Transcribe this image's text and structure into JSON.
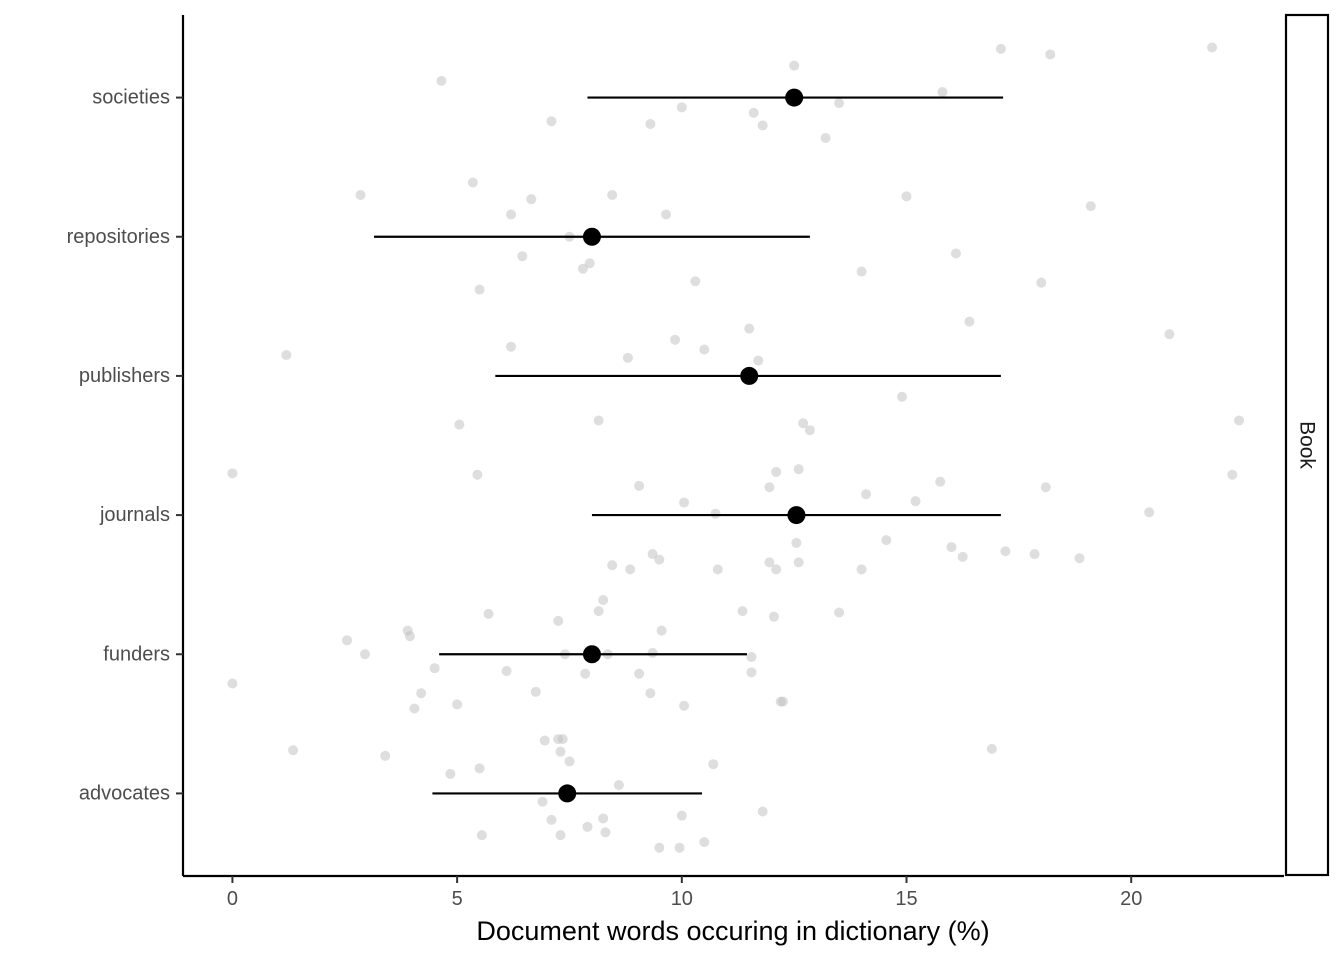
{
  "chart_data": {
    "type": "scatter",
    "facet_label": "Book",
    "xlabel": "Document words occuring in dictionary (%)",
    "ylabel": "",
    "xlim": [
      -1.1,
      23.4
    ],
    "x_ticks": [
      0,
      5,
      10,
      15,
      20
    ],
    "categories": [
      "advocates",
      "funders",
      "journals",
      "publishers",
      "repositories",
      "societies"
    ],
    "grid": false,
    "colors": {
      "points": "#bdbdbd",
      "summary": "#000000",
      "axis": "#000000",
      "tick_label": "#4d4d4d"
    },
    "summary": [
      {
        "category": "advocates",
        "mean": 7.45,
        "low": 4.45,
        "high": 10.45
      },
      {
        "category": "funders",
        "mean": 8.0,
        "low": 4.6,
        "high": 11.45
      },
      {
        "category": "journals",
        "mean": 12.55,
        "low": 8.0,
        "high": 17.1
      },
      {
        "category": "publishers",
        "mean": 11.5,
        "low": 5.85,
        "high": 17.1
      },
      {
        "category": "repositories",
        "mean": 8.0,
        "low": 3.15,
        "high": 12.85
      },
      {
        "category": "societies",
        "mean": 12.5,
        "low": 7.9,
        "high": 17.15
      }
    ],
    "points": [
      {
        "category": "societies",
        "x": 17.1,
        "offset": 0.35
      },
      {
        "category": "societies",
        "x": 18.2,
        "offset": 0.31
      },
      {
        "category": "societies",
        "x": 21.8,
        "offset": 0.36
      },
      {
        "category": "societies",
        "x": 12.5,
        "offset": 0.23
      },
      {
        "category": "societies",
        "x": 4.65,
        "offset": 0.12
      },
      {
        "category": "societies",
        "x": 15.8,
        "offset": 0.04
      },
      {
        "category": "societies",
        "x": 13.5,
        "offset": -0.04
      },
      {
        "category": "societies",
        "x": 10.0,
        "offset": -0.07
      },
      {
        "category": "societies",
        "x": 11.6,
        "offset": -0.11
      },
      {
        "category": "societies",
        "x": 7.1,
        "offset": -0.17
      },
      {
        "category": "societies",
        "x": 9.3,
        "offset": -0.19
      },
      {
        "category": "societies",
        "x": 11.8,
        "offset": -0.2
      },
      {
        "category": "societies",
        "x": 13.2,
        "offset": -0.29
      },
      {
        "category": "repositories",
        "x": 2.85,
        "offset": 0.3
      },
      {
        "category": "repositories",
        "x": 5.35,
        "offset": 0.39
      },
      {
        "category": "repositories",
        "x": 8.45,
        "offset": 0.3
      },
      {
        "category": "repositories",
        "x": 15.0,
        "offset": 0.29
      },
      {
        "category": "repositories",
        "x": 19.1,
        "offset": 0.22
      },
      {
        "category": "repositories",
        "x": 6.2,
        "offset": 0.16
      },
      {
        "category": "repositories",
        "x": 6.65,
        "offset": 0.27
      },
      {
        "category": "repositories",
        "x": 9.65,
        "offset": 0.16
      },
      {
        "category": "repositories",
        "x": 7.5,
        "offset": 0.0
      },
      {
        "category": "repositories",
        "x": 6.45,
        "offset": -0.14
      },
      {
        "category": "repositories",
        "x": 7.95,
        "offset": -0.19
      },
      {
        "category": "repositories",
        "x": 7.8,
        "offset": -0.23
      },
      {
        "category": "repositories",
        "x": 16.1,
        "offset": -0.12
      },
      {
        "category": "repositories",
        "x": 14.0,
        "offset": -0.25
      },
      {
        "category": "repositories",
        "x": 10.3,
        "offset": -0.32
      },
      {
        "category": "repositories",
        "x": 18.0,
        "offset": -0.33
      },
      {
        "category": "repositories",
        "x": 5.5,
        "offset": -0.38
      },
      {
        "category": "publishers",
        "x": 16.4,
        "offset": 0.39
      },
      {
        "category": "publishers",
        "x": 20.85,
        "offset": 0.3
      },
      {
        "category": "publishers",
        "x": 11.5,
        "offset": 0.34
      },
      {
        "category": "publishers",
        "x": 9.85,
        "offset": 0.26
      },
      {
        "category": "publishers",
        "x": 6.2,
        "offset": 0.21
      },
      {
        "category": "publishers",
        "x": 10.5,
        "offset": 0.19
      },
      {
        "category": "publishers",
        "x": 1.2,
        "offset": 0.15
      },
      {
        "category": "publishers",
        "x": 8.8,
        "offset": 0.13
      },
      {
        "category": "publishers",
        "x": 11.7,
        "offset": 0.11
      },
      {
        "category": "publishers",
        "x": 14.9,
        "offset": -0.15
      },
      {
        "category": "publishers",
        "x": 5.05,
        "offset": -0.35
      },
      {
        "category": "publishers",
        "x": 8.15,
        "offset": -0.32
      },
      {
        "category": "publishers",
        "x": 12.7,
        "offset": -0.34
      },
      {
        "category": "publishers",
        "x": 12.85,
        "offset": -0.39
      },
      {
        "category": "publishers",
        "x": 22.4,
        "offset": -0.32
      },
      {
        "category": "journals",
        "x": 0.0,
        "offset": 0.3
      },
      {
        "category": "journals",
        "x": 5.45,
        "offset": 0.29
      },
      {
        "category": "journals",
        "x": 12.1,
        "offset": 0.31
      },
      {
        "category": "journals",
        "x": 12.6,
        "offset": 0.33
      },
      {
        "category": "journals",
        "x": 22.25,
        "offset": 0.29
      },
      {
        "category": "journals",
        "x": 15.75,
        "offset": 0.24
      },
      {
        "category": "journals",
        "x": 9.05,
        "offset": 0.21
      },
      {
        "category": "journals",
        "x": 11.95,
        "offset": 0.2
      },
      {
        "category": "journals",
        "x": 18.1,
        "offset": 0.2
      },
      {
        "category": "journals",
        "x": 14.1,
        "offset": 0.15
      },
      {
        "category": "journals",
        "x": 10.05,
        "offset": 0.09
      },
      {
        "category": "journals",
        "x": 15.2,
        "offset": 0.1
      },
      {
        "category": "journals",
        "x": 10.75,
        "offset": 0.01
      },
      {
        "category": "journals",
        "x": 20.4,
        "offset": 0.02
      },
      {
        "category": "journals",
        "x": 12.55,
        "offset": -0.2
      },
      {
        "category": "journals",
        "x": 14.55,
        "offset": -0.18
      },
      {
        "category": "journals",
        "x": 16.0,
        "offset": -0.23
      },
      {
        "category": "journals",
        "x": 17.2,
        "offset": -0.26
      },
      {
        "category": "journals",
        "x": 17.85,
        "offset": -0.28
      },
      {
        "category": "journals",
        "x": 9.35,
        "offset": -0.28
      },
      {
        "category": "journals",
        "x": 9.5,
        "offset": -0.32
      },
      {
        "category": "journals",
        "x": 11.95,
        "offset": -0.34
      },
      {
        "category": "journals",
        "x": 12.6,
        "offset": -0.34
      },
      {
        "category": "journals",
        "x": 16.25,
        "offset": -0.3
      },
      {
        "category": "journals",
        "x": 18.85,
        "offset": -0.31
      },
      {
        "category": "journals",
        "x": 8.45,
        "offset": -0.36
      },
      {
        "category": "journals",
        "x": 8.85,
        "offset": -0.39
      },
      {
        "category": "journals",
        "x": 10.8,
        "offset": -0.39
      },
      {
        "category": "journals",
        "x": 12.1,
        "offset": -0.39
      },
      {
        "category": "journals",
        "x": 14.0,
        "offset": -0.39
      },
      {
        "category": "funders",
        "x": 8.25,
        "offset": 0.39
      },
      {
        "category": "funders",
        "x": 5.7,
        "offset": 0.29
      },
      {
        "category": "funders",
        "x": 8.15,
        "offset": 0.31
      },
      {
        "category": "funders",
        "x": 11.35,
        "offset": 0.31
      },
      {
        "category": "funders",
        "x": 13.5,
        "offset": 0.3
      },
      {
        "category": "funders",
        "x": 12.05,
        "offset": 0.27
      },
      {
        "category": "funders",
        "x": 7.25,
        "offset": 0.24
      },
      {
        "category": "funders",
        "x": 3.9,
        "offset": 0.17
      },
      {
        "category": "funders",
        "x": 3.95,
        "offset": 0.13
      },
      {
        "category": "funders",
        "x": 9.55,
        "offset": 0.17
      },
      {
        "category": "funders",
        "x": 2.55,
        "offset": 0.1
      },
      {
        "category": "funders",
        "x": 2.95,
        "offset": 0.0
      },
      {
        "category": "funders",
        "x": 7.4,
        "offset": 0.0
      },
      {
        "category": "funders",
        "x": 8.35,
        "offset": 0.0
      },
      {
        "category": "funders",
        "x": 9.35,
        "offset": 0.01
      },
      {
        "category": "funders",
        "x": 11.55,
        "offset": -0.02
      },
      {
        "category": "funders",
        "x": 4.5,
        "offset": -0.1
      },
      {
        "category": "funders",
        "x": 6.1,
        "offset": -0.12
      },
      {
        "category": "funders",
        "x": 7.85,
        "offset": -0.14
      },
      {
        "category": "funders",
        "x": 9.05,
        "offset": -0.14
      },
      {
        "category": "funders",
        "x": 11.55,
        "offset": -0.13
      },
      {
        "category": "funders",
        "x": 0.0,
        "offset": -0.21
      },
      {
        "category": "funders",
        "x": 4.2,
        "offset": -0.28
      },
      {
        "category": "funders",
        "x": 6.75,
        "offset": -0.27
      },
      {
        "category": "funders",
        "x": 9.3,
        "offset": -0.28
      },
      {
        "category": "funders",
        "x": 12.2,
        "offset": -0.34
      },
      {
        "category": "funders",
        "x": 12.25,
        "offset": -0.34
      },
      {
        "category": "funders",
        "x": 4.05,
        "offset": -0.39
      },
      {
        "category": "funders",
        "x": 5.0,
        "offset": -0.36
      },
      {
        "category": "funders",
        "x": 10.05,
        "offset": -0.37
      },
      {
        "category": "advocates",
        "x": 7.25,
        "offset": 0.39
      },
      {
        "category": "advocates",
        "x": 7.35,
        "offset": 0.39
      },
      {
        "category": "advocates",
        "x": 6.95,
        "offset": 0.38
      },
      {
        "category": "advocates",
        "x": 1.35,
        "offset": 0.31
      },
      {
        "category": "advocates",
        "x": 3.4,
        "offset": 0.27
      },
      {
        "category": "advocates",
        "x": 7.3,
        "offset": 0.3
      },
      {
        "category": "advocates",
        "x": 16.9,
        "offset": 0.32
      },
      {
        "category": "advocates",
        "x": 7.5,
        "offset": 0.23
      },
      {
        "category": "advocates",
        "x": 5.5,
        "offset": 0.18
      },
      {
        "category": "advocates",
        "x": 10.7,
        "offset": 0.21
      },
      {
        "category": "advocates",
        "x": 4.85,
        "offset": 0.14
      },
      {
        "category": "advocates",
        "x": 8.6,
        "offset": 0.06
      },
      {
        "category": "advocates",
        "x": 6.9,
        "offset": -0.06
      },
      {
        "category": "advocates",
        "x": 11.8,
        "offset": -0.13
      },
      {
        "category": "advocates",
        "x": 10.0,
        "offset": -0.16
      },
      {
        "category": "advocates",
        "x": 7.1,
        "offset": -0.19
      },
      {
        "category": "advocates",
        "x": 8.25,
        "offset": -0.18
      },
      {
        "category": "advocates",
        "x": 7.9,
        "offset": -0.24
      },
      {
        "category": "advocates",
        "x": 8.3,
        "offset": -0.28
      },
      {
        "category": "advocates",
        "x": 5.55,
        "offset": -0.3
      },
      {
        "category": "advocates",
        "x": 7.3,
        "offset": -0.3
      },
      {
        "category": "advocates",
        "x": 10.5,
        "offset": -0.35
      },
      {
        "category": "advocates",
        "x": 9.5,
        "offset": -0.39
      },
      {
        "category": "advocates",
        "x": 9.95,
        "offset": -0.39
      }
    ]
  }
}
